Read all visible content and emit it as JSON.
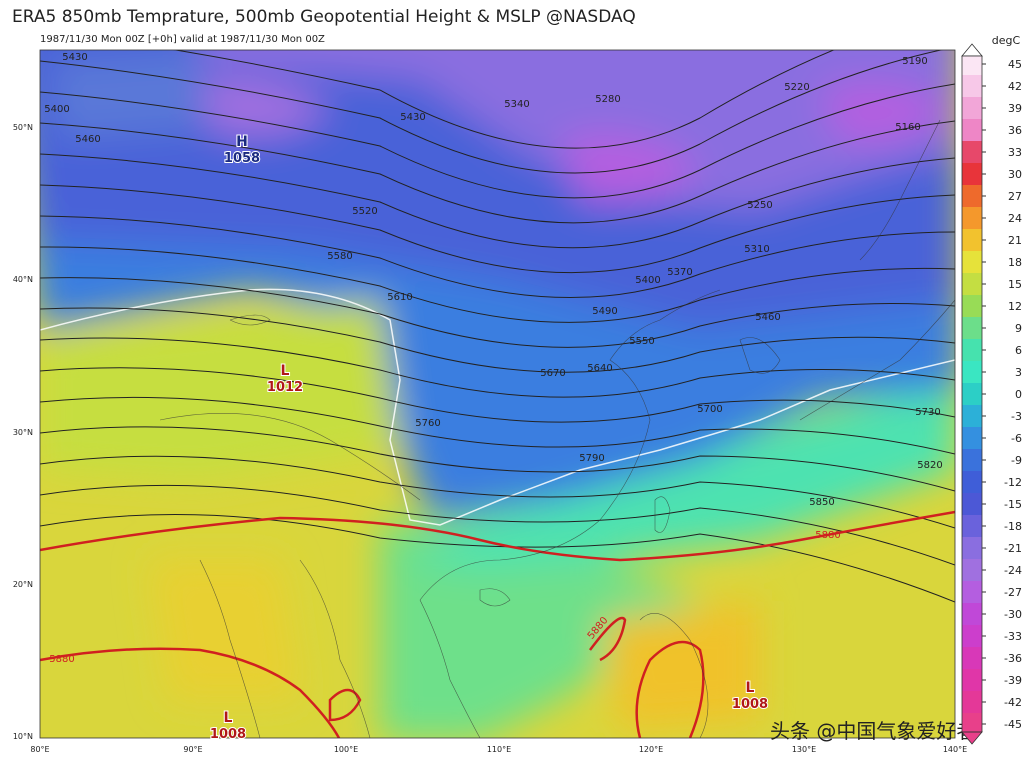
{
  "header": {
    "title": "ERA5 850mb Temprature, 500mb Geopotential Height & MSLP @NASDAQ",
    "subtitle": "1987/11/30 Mon 00Z [+0h] valid at 1987/11/30 Mon 00Z"
  },
  "colorbar": {
    "unit": "degC",
    "ticks": [
      45,
      42,
      39,
      36,
      33,
      30,
      27,
      24,
      21,
      18,
      15,
      12,
      9,
      6,
      3,
      0,
      -3,
      -6,
      -9,
      -12,
      -15,
      -18,
      -21,
      -24,
      -27,
      -30,
      -33,
      -36,
      -39,
      -42,
      -45
    ],
    "colors": [
      "#fbe6f4",
      "#f7c8e8",
      "#f2a6d8",
      "#ee86c6",
      "#e7486a",
      "#e8343a",
      "#ee6a2c",
      "#f4982c",
      "#f2c22e",
      "#e6e23a",
      "#c4de42",
      "#98dc56",
      "#6cde8a",
      "#46e2ae",
      "#3ae6c2",
      "#2ccfc6",
      "#2cb0d8",
      "#3490e0",
      "#3a72dc",
      "#3f5ed8",
      "#4c58d6",
      "#6a62dc",
      "#8a6ee0",
      "#a070e0",
      "#b45ee0",
      "#c048d8",
      "#cc3ecc",
      "#d838b8",
      "#e036a8",
      "#e43898",
      "#e8408a"
    ]
  },
  "map": {
    "lat_labels": [
      "50°N",
      "40°N",
      "30°N",
      "20°N",
      "10°N"
    ],
    "lon_labels": [
      "80°E",
      "90°E",
      "100°E",
      "110°E",
      "120°E",
      "130°E",
      "140°E"
    ],
    "contour_labels": [
      5430,
      5400,
      5460,
      5430,
      5340,
      5280,
      5220,
      5190,
      5160,
      5520,
      5580,
      5610,
      5250,
      5310,
      5370,
      5400,
      5490,
      5460,
      5550,
      5670,
      5640,
      5700,
      5730,
      5760,
      5790,
      5820,
      5850,
      5880,
      5880,
      5880
    ],
    "pressure_centers": [
      {
        "type": "H",
        "value": 1058
      },
      {
        "type": "L",
        "value": 1012
      },
      {
        "type": "L",
        "value": 1008
      },
      {
        "type": "L",
        "value": 1008
      }
    ]
  },
  "watermark": "头条 @中国气象爱好者"
}
